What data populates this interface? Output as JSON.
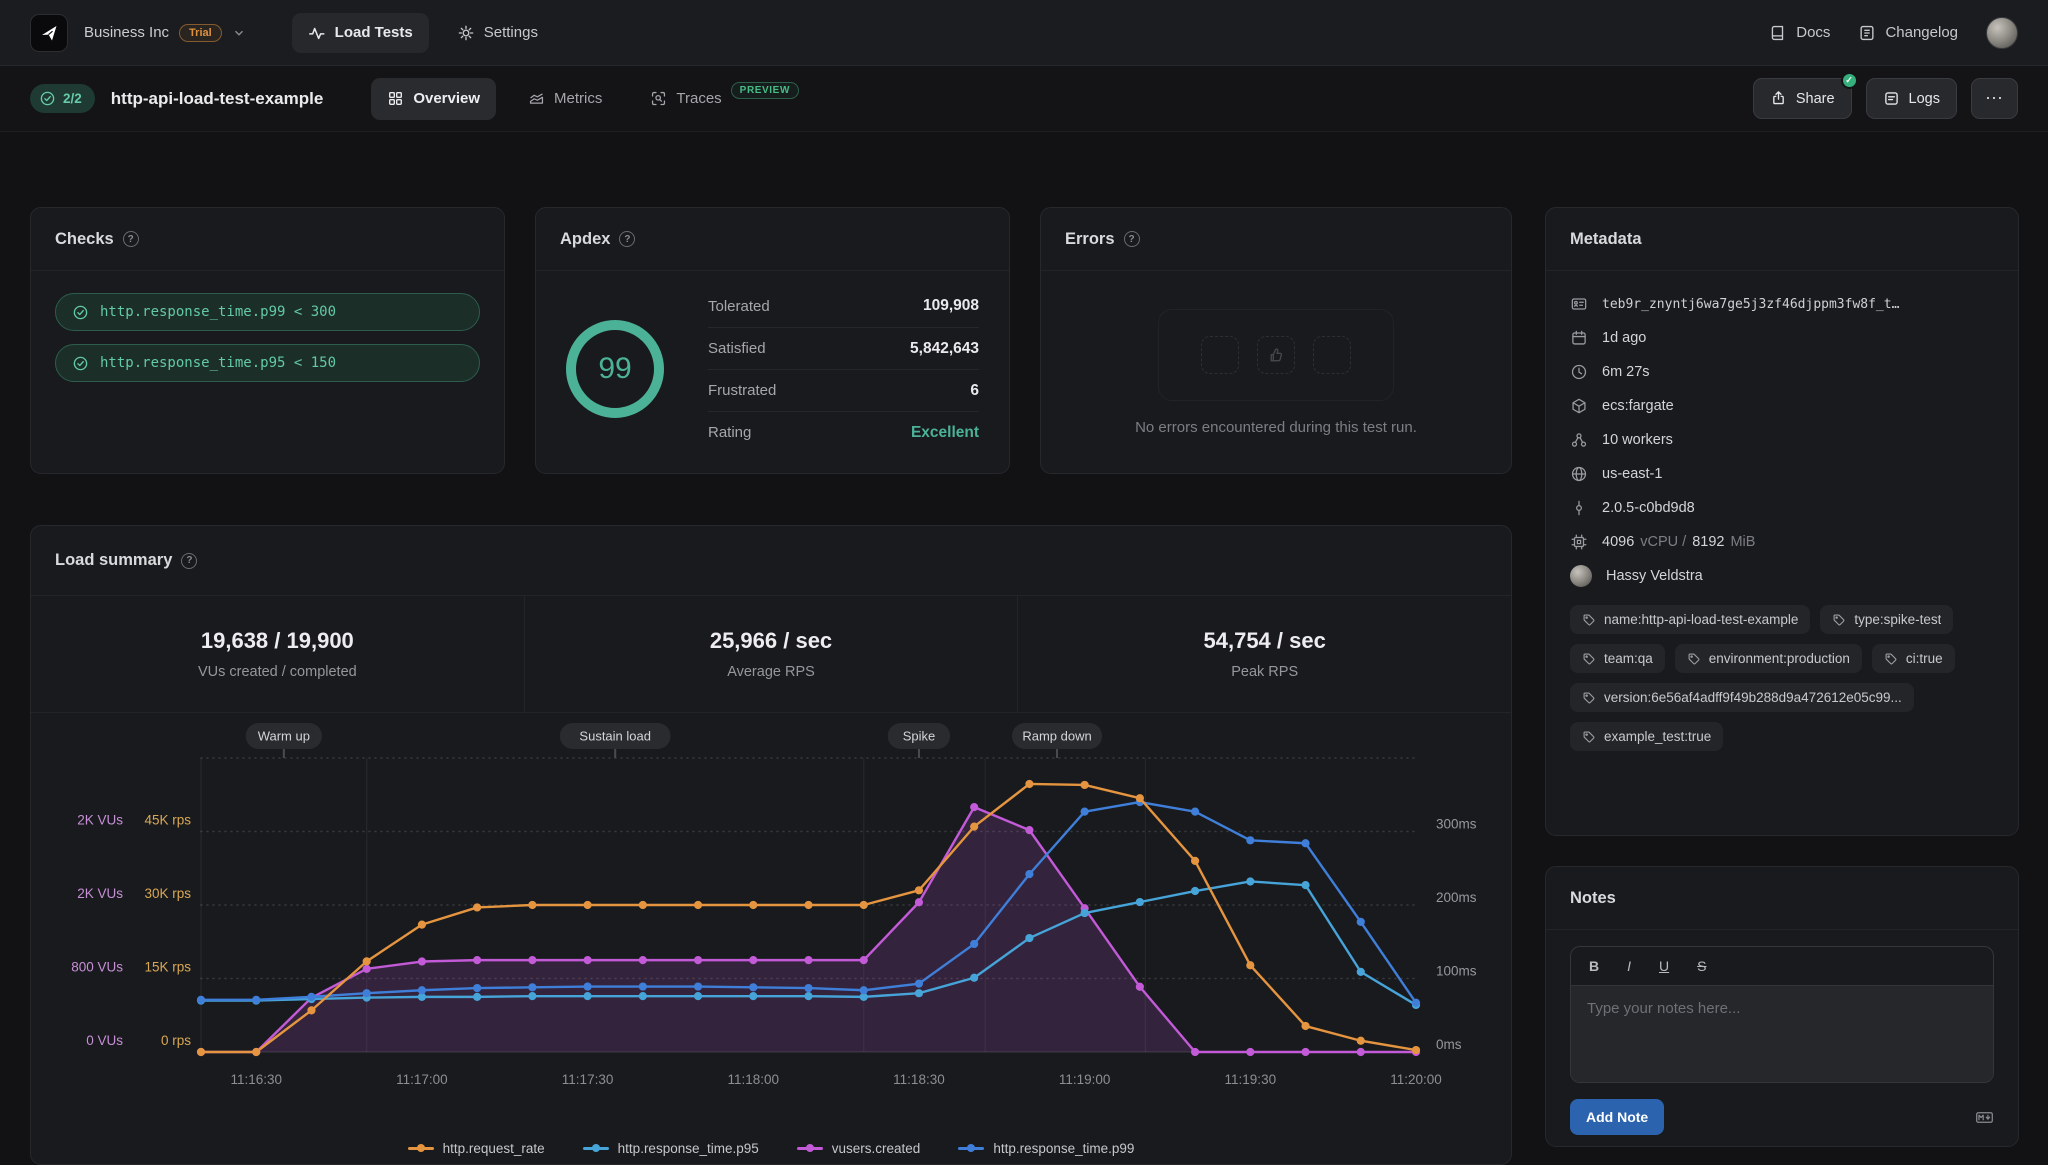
{
  "nav": {
    "org": "Business Inc",
    "trial_badge": "Trial",
    "load_tests": "Load Tests",
    "settings": "Settings",
    "docs": "Docs",
    "changelog": "Changelog"
  },
  "header": {
    "checks_passed": "2/2",
    "title": "http-api-load-test-example",
    "tabs": [
      {
        "label": "Overview"
      },
      {
        "label": "Metrics"
      },
      {
        "label": "Traces",
        "badge": "PREVIEW"
      }
    ],
    "share_label": "Share",
    "logs_label": "Logs",
    "more_label": "⋯"
  },
  "checks": {
    "title": "Checks",
    "items": [
      "http.response_time.p99 < 300",
      "http.response_time.p95 < 150"
    ]
  },
  "apdex": {
    "title": "Apdex",
    "score": "99",
    "rows": [
      {
        "label": "Tolerated",
        "value": "109,908"
      },
      {
        "label": "Satisfied",
        "value": "5,842,643"
      },
      {
        "label": "Frustrated",
        "value": "6"
      },
      {
        "label": "Rating",
        "value": "Excellent"
      }
    ]
  },
  "errors": {
    "title": "Errors",
    "empty_message": "No errors encountered during this test run."
  },
  "load_summary": {
    "title": "Load summary",
    "stats": [
      {
        "value": "19,638 / 19,900",
        "label": "VUs created / completed"
      },
      {
        "value": "25,966 / sec",
        "label": "Average RPS"
      },
      {
        "value": "54,754 / sec",
        "label": "Peak RPS"
      }
    ]
  },
  "chart_data": {
    "type": "line",
    "title": "Load summary timeline",
    "time_start": "11:16:20",
    "time_end": "11:20:00",
    "point_interval_s": 10,
    "x_ticks": [
      {
        "t": 10,
        "label": "11:16:30"
      },
      {
        "t": 40,
        "label": "11:17:00"
      },
      {
        "t": 70,
        "label": "11:17:30"
      },
      {
        "t": 100,
        "label": "11:18:00"
      },
      {
        "t": 130,
        "label": "11:18:30"
      },
      {
        "t": 160,
        "label": "11:19:00"
      },
      {
        "t": 190,
        "label": "11:19:30"
      },
      {
        "t": 220,
        "label": "11:20:00"
      }
    ],
    "phases": [
      {
        "label": "Warm up",
        "t": 15
      },
      {
        "label": "Sustain load",
        "t": 75
      },
      {
        "label": "Spike",
        "t": 130
      },
      {
        "label": "Ramp down",
        "t": 155
      }
    ],
    "phase_boundaries_t": [
      30,
      120,
      142,
      171
    ],
    "axis_rows": [
      {
        "frac": 0.75,
        "vu": "2K VUs",
        "rps": "45K rps",
        "ms": "300ms"
      },
      {
        "frac": 0.5,
        "vu": "2K VUs",
        "rps": "30K rps",
        "ms": "200ms"
      },
      {
        "frac": 0.25,
        "vu": "800 VUs",
        "rps": "15K rps",
        "ms": "100ms"
      },
      {
        "frac": 0,
        "vu": "0 VUs",
        "rps": "0 rps",
        "ms": "0ms"
      }
    ],
    "axis_max": {
      "rps": 60000,
      "vu": 3200,
      "ms": 400
    },
    "series": [
      {
        "name": "http.request_rate",
        "axis": "rps",
        "color": "#e5953f",
        "z": 4,
        "values": [
          0,
          0,
          8500,
          18500,
          26000,
          29500,
          30000,
          30000,
          30000,
          30000,
          30000,
          30000,
          30000,
          33000,
          46000,
          54700,
          54500,
          51800,
          39000,
          17700,
          5300,
          2300,
          400
        ]
      },
      {
        "name": "http.response_time.p95",
        "axis": "ms",
        "color": "#46a4d9",
        "z": 2,
        "values": [
          70,
          70,
          72,
          74,
          75,
          75,
          76,
          76,
          76,
          76,
          76,
          76,
          75,
          80,
          101,
          155,
          189,
          204,
          219,
          232,
          227,
          109,
          64
        ]
      },
      {
        "name": "vusers.created",
        "axis": "vu",
        "color": "#c35ad7",
        "z": 1,
        "area": true,
        "values": [
          0,
          0,
          590,
          905,
          985,
          1000,
          1000,
          1000,
          1000,
          1000,
          1000,
          1000,
          1000,
          1630,
          2665,
          2415,
          1565,
          710,
          0,
          0,
          0,
          0,
          0
        ]
      },
      {
        "name": "http.response_time.p99",
        "axis": "ms",
        "color": "#3f7fd9",
        "z": 3,
        "values": [
          71,
          71,
          75,
          80,
          84,
          87,
          88,
          89,
          89,
          89,
          88,
          87,
          84,
          93,
          147,
          242,
          327,
          340,
          327,
          288,
          284,
          177,
          67
        ]
      }
    ]
  },
  "metadata": {
    "title": "Metadata",
    "run_id": "teb9r_znyntj6wa7ge5j3zf46djppm3fw8f_t…",
    "created": "1d ago",
    "duration": "6m 27s",
    "platform": "ecs:fargate",
    "workers": "10 workers",
    "region": "us-east-1",
    "version": "2.0.5-c0bd9d8",
    "cpu": "4096",
    "cpu_unit": "vCPU /",
    "mem": "8192",
    "mem_unit": "MiB",
    "author": "Hassy Veldstra",
    "tags": [
      "name:http-api-load-test-example",
      "type:spike-test",
      "team:qa",
      "environment:production",
      "ci:true",
      "version:6e56af4adff9f49b288d9a472612e05c99...",
      "example_test:true"
    ]
  },
  "notes": {
    "title": "Notes",
    "bold": "B",
    "italic": "I",
    "underline": "U",
    "strike": "S",
    "placeholder": "Type your notes here...",
    "add_button": "Add Note"
  },
  "colors": {
    "teal": "#4bb298",
    "orange": "#e5953f",
    "magenta": "#c35ad7",
    "blue_p95": "#46a4d9",
    "blue_p99": "#3f7fd9",
    "vu_label": "#c78fd6",
    "rps_label": "#d9a855",
    "add_note_blue": "#2b63ae"
  }
}
